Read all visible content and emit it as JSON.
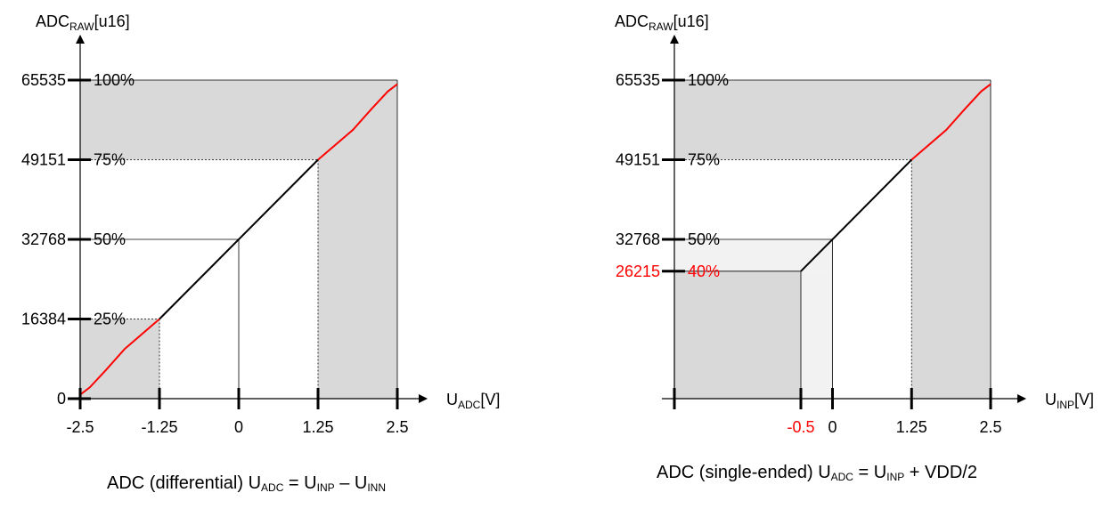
{
  "colors": {
    "shade": "#d9d9d9",
    "light_shade": "#f2f2f2",
    "clip_curve": "#ff0000",
    "linear_curve": "#000000",
    "highlight_text": "#ff0000"
  },
  "chart_data": [
    {
      "type": "line",
      "ylabel_main": "ADC",
      "ylabel_sub": "RAW",
      "ylabel_suffix": "[u16]",
      "xlabel_main": "U",
      "xlabel_sub": "ADC",
      "xlabel_suffix": "[V]",
      "xlim": [
        -2.5,
        2.5
      ],
      "ylim": [
        0,
        65535
      ],
      "x_ticks": [
        {
          "value": -2.5,
          "label": "-2.5"
        },
        {
          "value": -1.25,
          "label": "-1.25"
        },
        {
          "value": 0,
          "label": "0"
        },
        {
          "value": 1.25,
          "label": "1.25"
        },
        {
          "value": 2.5,
          "label": "2.5"
        }
      ],
      "y_ticks": [
        {
          "value": 0,
          "label": "0",
          "pct": ""
        },
        {
          "value": 16384,
          "label": "16384",
          "pct": "25%"
        },
        {
          "value": 32768,
          "label": "32768",
          "pct": "50%"
        },
        {
          "value": 49151,
          "label": "49151",
          "pct": "75%"
        },
        {
          "value": 65535,
          "label": "65535",
          "pct": "100%"
        }
      ],
      "linear_segment": {
        "x": [
          -1.25,
          1.25
        ],
        "y": [
          16384,
          49151
        ]
      },
      "clip_low": {
        "x": [
          -2.5,
          -2.35,
          -2.1,
          -1.8,
          -1.25
        ],
        "y": [
          800,
          2300,
          5800,
          10200,
          16384
        ]
      },
      "clip_high": {
        "x": [
          1.25,
          1.8,
          2.1,
          2.35,
          2.5
        ],
        "y": [
          49151,
          55300,
          59700,
          63200,
          64700
        ]
      },
      "caption": {
        "lead": "ADC (differential) U",
        "sub1": "ADC",
        "mid1": " = U",
        "sub2": "INP",
        "mid2": " – U",
        "sub3": "INN",
        "tail": ""
      }
    },
    {
      "type": "line",
      "ylabel_main": "ADC",
      "ylabel_sub": "RAW",
      "ylabel_suffix": "[u16]",
      "xlabel_main": "U",
      "xlabel_sub": "INP",
      "xlabel_suffix": "[V]",
      "xlim": [
        -2.5,
        2.5
      ],
      "ylim": [
        0,
        65535
      ],
      "x_ticks": [
        {
          "value": -0.5,
          "label": "-0.5",
          "highlight": true
        },
        {
          "value": 0,
          "label": "0"
        },
        {
          "value": 1.25,
          "label": "1.25"
        },
        {
          "value": 2.5,
          "label": "2.5"
        }
      ],
      "y_ticks": [
        {
          "value": 26215,
          "label": "26215",
          "pct": "40%",
          "highlight": true
        },
        {
          "value": 32768,
          "label": "32768",
          "pct": "50%"
        },
        {
          "value": 49151,
          "label": "49151",
          "pct": "75%"
        },
        {
          "value": 65535,
          "label": "65535",
          "pct": "100%"
        }
      ],
      "linear_segment": {
        "x": [
          -0.5,
          1.25
        ],
        "y": [
          26215,
          49151
        ]
      },
      "clip_high": {
        "x": [
          1.25,
          1.8,
          2.1,
          2.35,
          2.5
        ],
        "y": [
          49151,
          55300,
          59700,
          63200,
          64700
        ]
      },
      "caption": {
        "lead": "ADC (single-ended) U",
        "sub1": "ADC",
        "mid1": " = U",
        "sub2": "INP",
        "mid2": "",
        "sub3": "",
        "tail": " + VDD/2"
      }
    }
  ]
}
